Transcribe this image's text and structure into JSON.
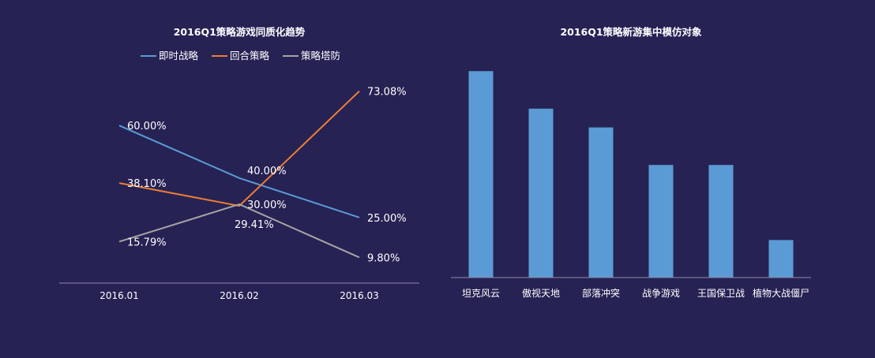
{
  "colors": {
    "background": "#262254",
    "axis": "#8d8aa8"
  },
  "chart_data": [
    {
      "type": "line",
      "title": "2016Q1策略游戏同质化趋势",
      "categories": [
        "2016.01",
        "2016.02",
        "2016.03"
      ],
      "series": [
        {
          "name": "即时战略",
          "color": "#5b9bd5",
          "values": [
            60.0,
            40.0,
            25.0
          ],
          "labels": [
            "60.00%",
            "40.00%",
            "25.00%"
          ]
        },
        {
          "name": "回合策略",
          "color": "#ed7d31",
          "values": [
            38.1,
            29.41,
            73.08
          ],
          "labels": [
            "38.10%",
            "29.41%",
            "73.08%"
          ]
        },
        {
          "name": "策略塔防",
          "color": "#a5a5a5",
          "values": [
            15.79,
            30.0,
            9.8
          ],
          "labels": [
            "15.79%",
            "30.00%",
            "9.80%"
          ]
        }
      ],
      "ylim": [
        0,
        80
      ],
      "legend": "top",
      "grid": false
    },
    {
      "type": "bar",
      "title": "2016Q1策略新游集中模仿对象",
      "categories": [
        "坦克风云",
        "傲视天地",
        "部落冲突",
        "战争游戏",
        "王国保卫战",
        "植物大战僵尸"
      ],
      "values": [
        11,
        9,
        8,
        6,
        6,
        2
      ],
      "color": "#5b9bd5",
      "ylim": [
        0,
        11
      ],
      "legend": "none",
      "grid": false
    }
  ]
}
